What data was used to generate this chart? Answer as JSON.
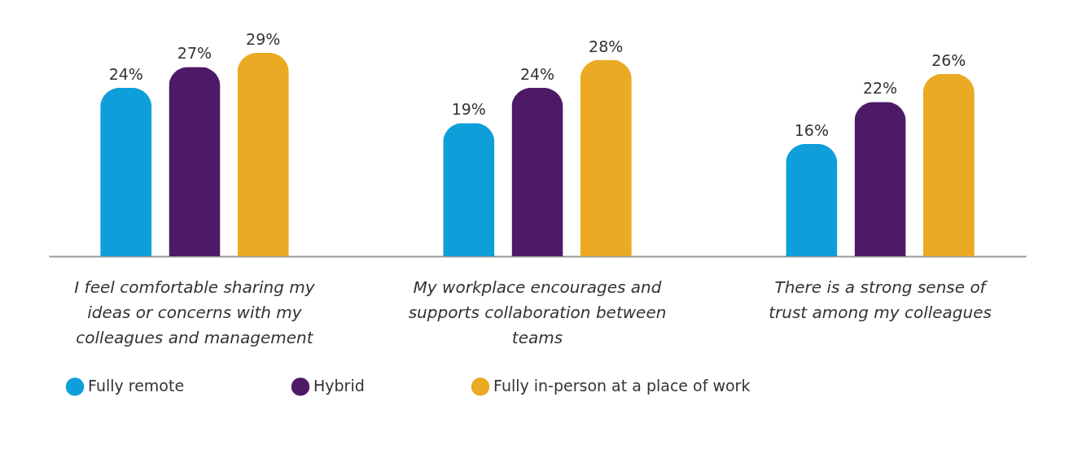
{
  "chart_data": {
    "type": "bar",
    "categories": [
      "I feel comfortable sharing my ideas or concerns with my colleagues and management",
      "My workplace encourages and supports collaboration between teams",
      "There is a strong sense of trust among my colleagues"
    ],
    "series": [
      {
        "name": "Fully remote",
        "color": "#0e9ed9",
        "values": [
          24,
          19,
          16
        ],
        "value_labels": [
          "24%",
          "19%",
          "16%"
        ]
      },
      {
        "name": "Hybrid",
        "color": "#4e1a67",
        "values": [
          27,
          24,
          22
        ],
        "value_labels": [
          "27%",
          "24%",
          "22%"
        ]
      },
      {
        "name": "Fully in-person at a place of work",
        "color": "#ebaa23",
        "values": [
          29,
          28,
          26
        ],
        "value_labels": [
          "29%",
          "28%",
          "26%"
        ]
      }
    ],
    "legend": "bottom",
    "grid": false
  }
}
